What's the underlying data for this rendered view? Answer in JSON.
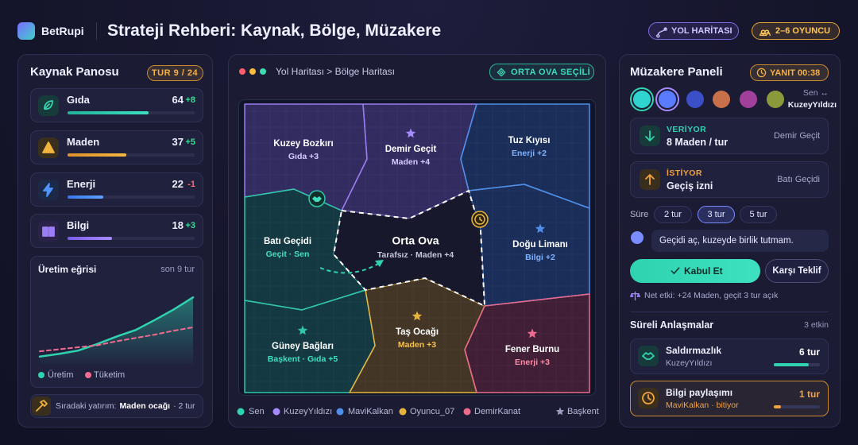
{
  "header": {
    "brand": "BetRupi",
    "title": "Strateji Rehberi: Kaynak, Bölge, Müzakere",
    "roadmap_button": "YOL HARİTASI",
    "players_button": "2–6 OYUNCU"
  },
  "resources": {
    "title": "Kaynak Panosu",
    "turn_badge": "TUR 9 / 24",
    "items": [
      {
        "name": "Gıda",
        "value": 64,
        "delta": "+8",
        "meter": 64
      },
      {
        "name": "Maden",
        "value": 37,
        "delta": "+5",
        "meter": 46
      },
      {
        "name": "Enerji",
        "value": 22,
        "delta": "-1",
        "meter": 28
      },
      {
        "name": "Bilgi",
        "value": 18,
        "delta": "+3",
        "meter": 35
      }
    ]
  },
  "chart_data": {
    "type": "line",
    "title": "Üretim eğrisi",
    "subtitle": "son 9 tur",
    "categories": [
      null,
      null,
      null,
      null,
      null,
      null,
      null,
      null,
      null
    ],
    "series": [
      {
        "name": "Üretim",
        "color": "#2fd3b0",
        "area": true,
        "values": [
          11,
          15,
          20,
          30,
          41,
          51,
          66,
          82,
          100
        ]
      },
      {
        "name": "Tüketim",
        "color": "#f06b8e",
        "dash": true,
        "values": [
          19,
          22,
          25,
          28,
          34,
          39,
          44,
          50,
          55
        ]
      }
    ],
    "ylim": [
      0,
      105
    ]
  },
  "next_investment": {
    "label": "Sıradaki yatırım:",
    "item": "Maden ocağı",
    "eta": "· 2 tur"
  },
  "map": {
    "breadcrumb": "Yol Haritası > Bölge Haritası",
    "selected_badge": "ORTA OVA SEÇİLİ",
    "regions": [
      {
        "name": "Kuzey Bozkırı",
        "info": "Gıda +3"
      },
      {
        "name": "Demir Geçit",
        "info": "Maden +4"
      },
      {
        "name": "Tuz Kıyısı",
        "info": "Enerji +2"
      },
      {
        "name": "Batı Geçidi",
        "info": "Geçit · Sen"
      },
      {
        "name": "Doğu Limanı",
        "info": "Bilgi +2"
      },
      {
        "name": "Güney Bağları",
        "info": "Başkent · Gıda +5"
      },
      {
        "name": "Taş Ocağı",
        "info": "Maden +3"
      },
      {
        "name": "Fener Burnu",
        "info": "Enerji +3"
      },
      {
        "name": "Orta Ova",
        "info": "Tarafsız · Maden +4"
      }
    ],
    "legend": [
      "Sen",
      "KuzeyYıldızı",
      "MaviKalkan",
      "Oyuncu_07",
      "DemirKanat",
      "Başkent"
    ]
  },
  "negotiation": {
    "title": "Müzakere Paneli",
    "timer": "YANIT 00:38",
    "pair_label": "Sen ↔",
    "counterpart": "KuzeyYıldızı",
    "offer": {
      "label": "VERİYOR",
      "value": "8 Maden / tur",
      "source": "Demir Geçit"
    },
    "request": {
      "label": "İSTİYOR",
      "value": "Geçiş izni",
      "source": "Batı Geçidi"
    },
    "duration_label": "Süre",
    "durations": [
      "2 tur",
      "3 tur",
      "5 tur"
    ],
    "selected_duration": "3 tur",
    "message": "Geçidi aç, kuzeyde birlik tutmam.",
    "accept": "Kabul Et",
    "counter": "Karşı Teklif",
    "net_effect": "Net etki: +24 Maden, geçit 3 tur açık",
    "deals_title": "Süreli Anlaşmalar",
    "deals_count": "3 etkin",
    "deals": [
      {
        "name": "Saldırmazlık",
        "party": "KuzeyYıldızı",
        "remaining": "6 tur",
        "progress": 75
      },
      {
        "name": "Bilgi paylaşımı",
        "party": "MaviKalkan · bitiyor",
        "remaining": "1 tur",
        "progress": 15
      }
    ]
  }
}
